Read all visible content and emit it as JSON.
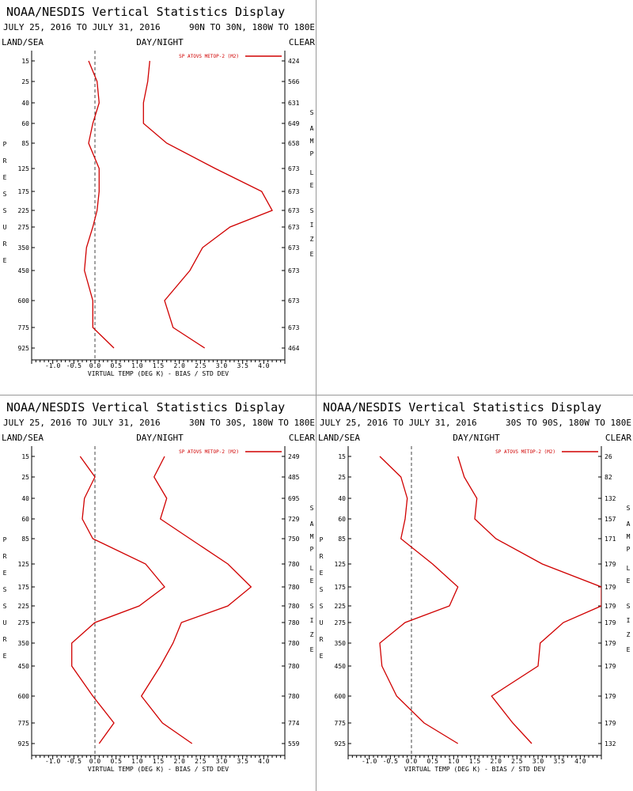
{
  "colors": {
    "series": "#d00000",
    "axis": "#000000",
    "zero_line": "#444444",
    "divider": "#999999"
  },
  "chart_data": [
    {
      "type": "line",
      "title": "NOAA/NESDIS Vertical Statistics Display",
      "date_range": "JULY 25, 2016 TO JULY 31, 2016",
      "region": "90N TO 30N, 180W TO 180E",
      "left_label": "LAND/SEA",
      "center_label": "DAY/NIGHT",
      "right_label": "CLEAR",
      "ylabel": "PRESSURE",
      "y2label": "SAMPLE SIZE",
      "xlabel": "VIRTUAL TEMP (DEG K) - BIAS / STD DEV",
      "legend": "SP ATOVS METOP-2 (M2)",
      "xlim": [
        -1.5,
        4.5
      ],
      "xticks": [
        "-1.0",
        "-0.5",
        "0.0",
        "0.5",
        "1.0",
        "1.5",
        "2.0",
        "2.5",
        "3.0",
        "3.5",
        "4.0"
      ],
      "pressure_levels": [
        "15",
        "25",
        "40",
        "60",
        "85",
        "125",
        "175",
        "225",
        "275",
        "350",
        "450",
        "600",
        "775",
        "925"
      ],
      "sample_size": [
        "424",
        "566",
        "631",
        "649",
        "658",
        "673",
        "673",
        "673",
        "673",
        "673",
        "673",
        "673",
        "673",
        "464"
      ],
      "series": [
        {
          "name": "BIAS",
          "values": [
            -0.15,
            0.05,
            0.1,
            -0.05,
            -0.15,
            0.1,
            0.1,
            0.05,
            -0.05,
            -0.2,
            -0.25,
            -0.05,
            -0.05,
            0.45
          ]
        },
        {
          "name": "STD DEV",
          "values": [
            1.3,
            1.25,
            1.15,
            1.15,
            1.7,
            2.85,
            3.95,
            4.2,
            3.2,
            2.55,
            2.25,
            1.65,
            1.85,
            2.6
          ]
        }
      ]
    },
    {
      "type": "line",
      "title": "NOAA/NESDIS Vertical Statistics Display",
      "date_range": "JULY 25, 2016 TO JULY 31, 2016",
      "region": "30N TO 30S, 180W TO 180E",
      "left_label": "LAND/SEA",
      "center_label": "DAY/NIGHT",
      "right_label": "CLEAR",
      "ylabel": "PRESSURE",
      "y2label": "SAMPLE SIZE",
      "xlabel": "VIRTUAL TEMP (DEG K) - BIAS / STD DEV",
      "legend": "SP ATOVS METOP-2 (M2)",
      "xlim": [
        -1.5,
        4.5
      ],
      "xticks": [
        "-1.0",
        "-0.5",
        "0.0",
        "0.5",
        "1.0",
        "1.5",
        "2.0",
        "2.5",
        "3.0",
        "3.5",
        "4.0"
      ],
      "pressure_levels": [
        "15",
        "25",
        "40",
        "60",
        "85",
        "125",
        "175",
        "225",
        "275",
        "350",
        "450",
        "600",
        "775",
        "925"
      ],
      "sample_size": [
        "249",
        "485",
        "695",
        "729",
        "750",
        "780",
        "780",
        "780",
        "780",
        "780",
        "780",
        "780",
        "774",
        "559"
      ],
      "series": [
        {
          "name": "BIAS",
          "values": [
            -0.35,
            0.0,
            -0.25,
            -0.3,
            -0.05,
            1.2,
            1.65,
            1.05,
            0.0,
            -0.55,
            -0.55,
            -0.05,
            0.45,
            0.1
          ]
        },
        {
          "name": "STD DEV",
          "values": [
            1.65,
            1.4,
            1.7,
            1.55,
            2.25,
            3.15,
            3.7,
            3.15,
            2.05,
            1.85,
            1.55,
            1.1,
            1.6,
            2.3
          ]
        }
      ]
    },
    {
      "type": "line",
      "title": "NOAA/NESDIS Vertical Statistics Display",
      "date_range": "JULY 25, 2016 TO JULY 31, 2016",
      "region": "30S TO 90S, 180W TO 180E",
      "left_label": "LAND/SEA",
      "center_label": "DAY/NIGHT",
      "right_label": "CLEAR",
      "ylabel": "PRESSURE",
      "y2label": "SAMPLE SIZE",
      "xlabel": "VIRTUAL TEMP (DEG K) - BIAS / STD DEV",
      "legend": "SP ATOVS METOP-2 (M2)",
      "xlim": [
        -1.5,
        4.5
      ],
      "xticks": [
        "-1.0",
        "-0.5",
        "0.0",
        "0.5",
        "1.0",
        "1.5",
        "2.0",
        "2.5",
        "3.0",
        "3.5",
        "4.0"
      ],
      "pressure_levels": [
        "15",
        "25",
        "40",
        "60",
        "85",
        "125",
        "175",
        "225",
        "275",
        "350",
        "450",
        "600",
        "775",
        "925"
      ],
      "sample_size": [
        "26",
        "82",
        "132",
        "157",
        "171",
        "179",
        "179",
        "179",
        "179",
        "179",
        "179",
        "179",
        "179",
        "132"
      ],
      "series": [
        {
          "name": "BIAS",
          "values": [
            -0.75,
            -0.25,
            -0.1,
            -0.15,
            -0.25,
            0.5,
            1.1,
            0.9,
            -0.15,
            -0.75,
            -0.7,
            -0.35,
            0.3,
            1.1
          ]
        },
        {
          "name": "STD DEV",
          "values": [
            1.1,
            1.25,
            1.55,
            1.5,
            2.0,
            3.1,
            4.5,
            4.5,
            3.6,
            3.05,
            3.0,
            1.9,
            2.4,
            2.85
          ]
        }
      ]
    }
  ]
}
